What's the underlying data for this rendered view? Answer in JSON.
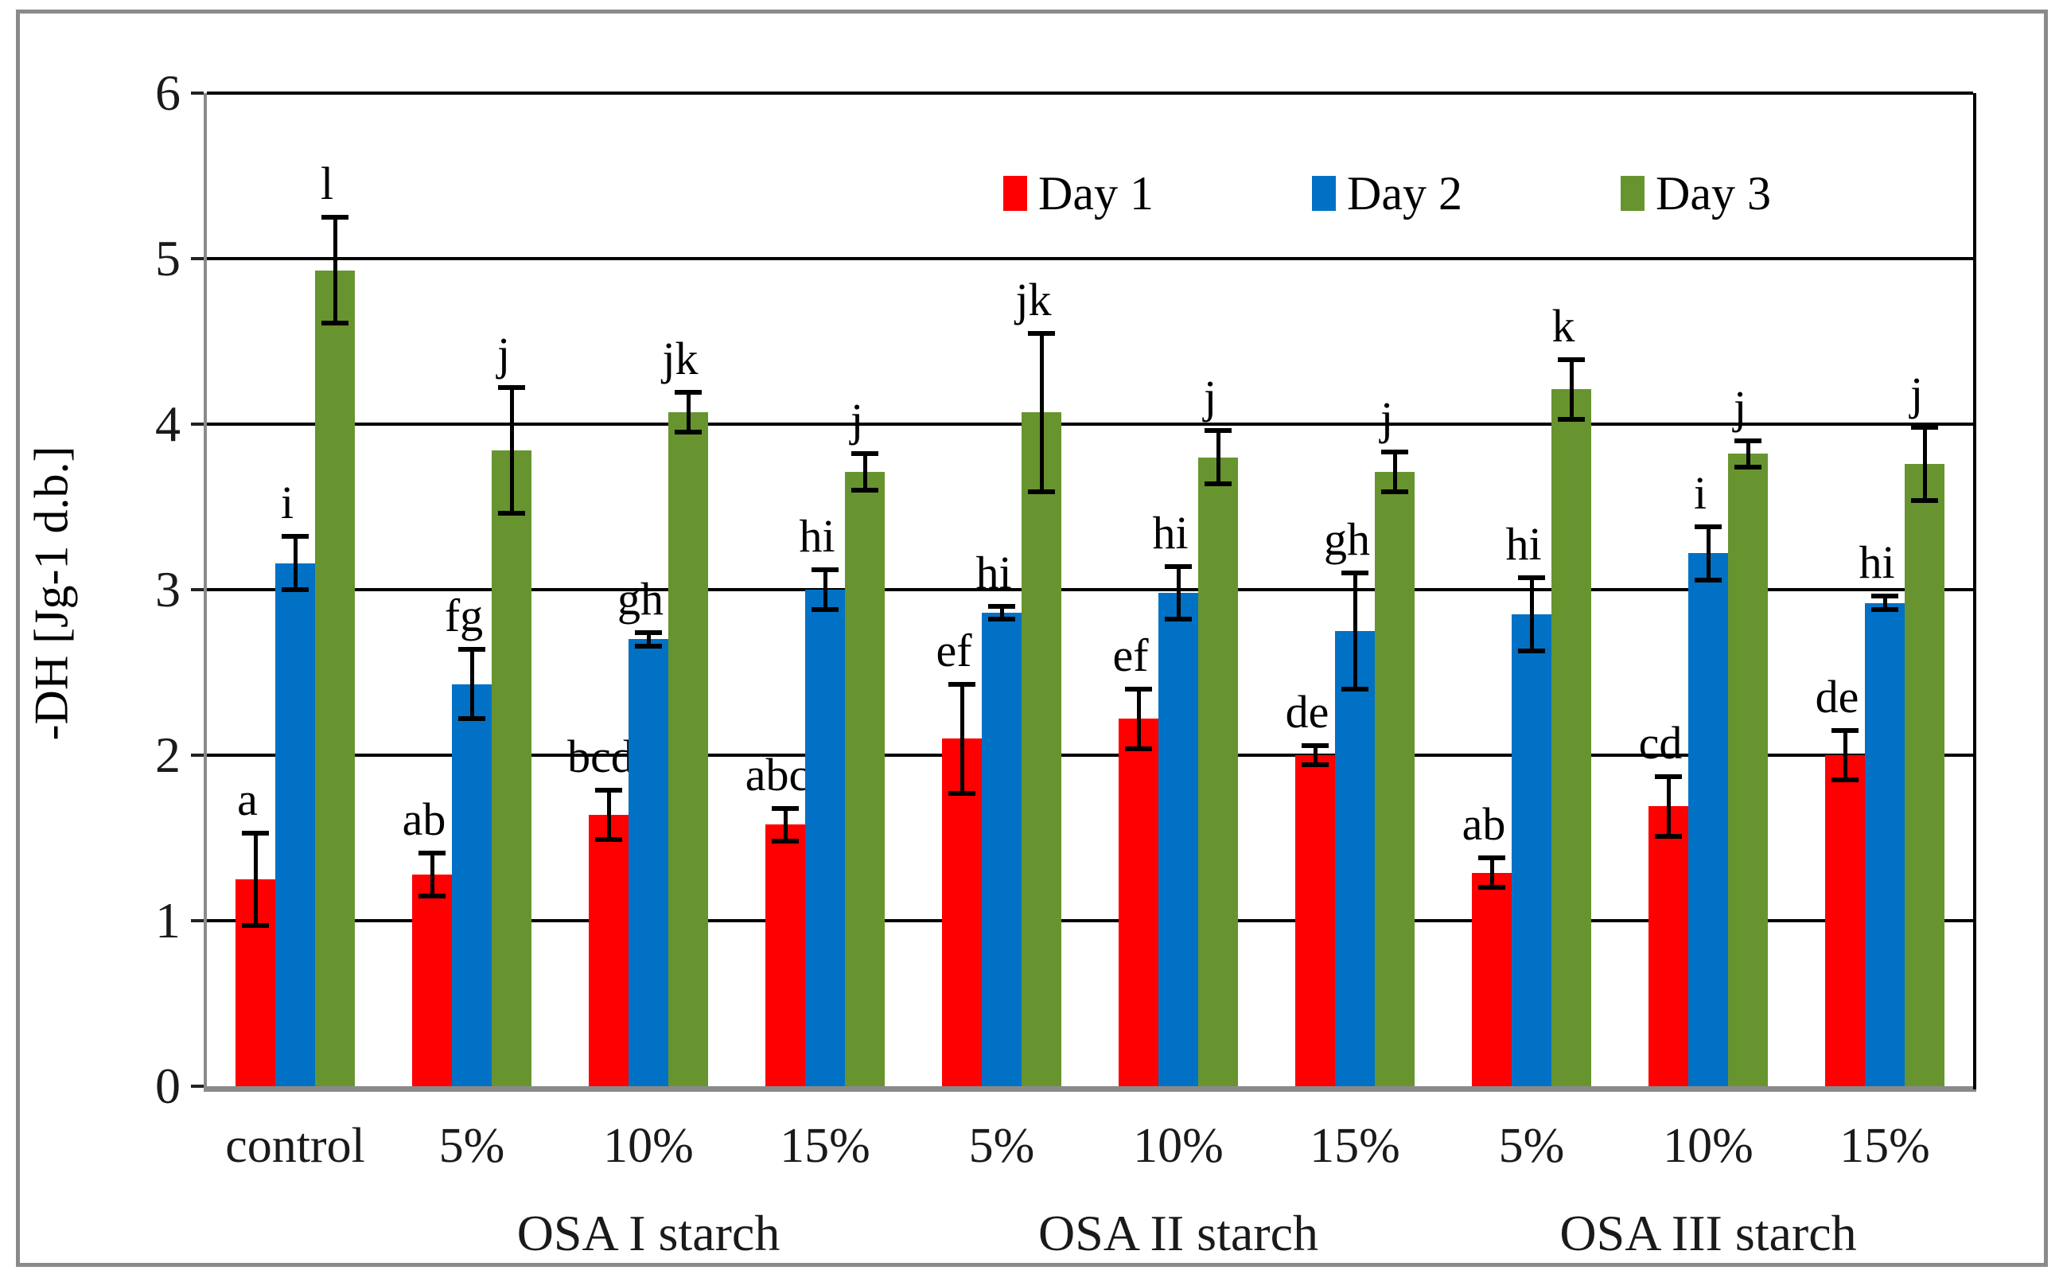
{
  "chart_data": {
    "type": "bar",
    "title": "",
    "ylabel": "-DH [Jg-1 d.b.]",
    "xlabel": "",
    "ylim": [
      0,
      6
    ],
    "ytick_step": 1,
    "ytick_labels": [
      "0",
      "1",
      "2",
      "3",
      "4",
      "5",
      "6"
    ],
    "grid": true,
    "legend_position": "top-inside",
    "categories": [
      "control",
      "5%",
      "10%",
      "15%",
      "5%",
      "10%",
      "15%",
      "5%",
      "10%",
      "15%"
    ],
    "group_labels": [
      {
        "label": "OSA I starch",
        "center_category_index": 2
      },
      {
        "label": "OSA II starch",
        "center_category_index": 5
      },
      {
        "label": "OSA III starch",
        "center_category_index": 8
      }
    ],
    "series": [
      {
        "name": "Day 1",
        "color": "#FE0000",
        "values": [
          1.25,
          1.28,
          1.64,
          1.58,
          2.1,
          2.22,
          2.0,
          1.29,
          1.69,
          2.0
        ],
        "errors": [
          0.28,
          0.13,
          0.15,
          0.1,
          0.33,
          0.18,
          0.06,
          0.09,
          0.18,
          0.15
        ],
        "letters": [
          "a",
          "ab",
          "bcd",
          "abc",
          "ef",
          "ef",
          "de",
          "ab",
          "cd",
          "de"
        ]
      },
      {
        "name": "Day 2",
        "color": "#0171C5",
        "values": [
          3.16,
          2.43,
          2.7,
          3.0,
          2.86,
          2.98,
          2.75,
          2.85,
          3.22,
          2.92
        ],
        "errors": [
          0.16,
          0.21,
          0.04,
          0.12,
          0.04,
          0.16,
          0.35,
          0.22,
          0.16,
          0.04
        ],
        "letters": [
          "i",
          "fg",
          "gh",
          "hi",
          "hi",
          "hi",
          "gh",
          "hi",
          "i",
          "hi"
        ]
      },
      {
        "name": "Day 3",
        "color": "#68942F",
        "values": [
          4.93,
          3.84,
          4.07,
          3.71,
          4.07,
          3.8,
          3.71,
          4.21,
          3.82,
          3.76
        ],
        "errors": [
          0.32,
          0.38,
          0.12,
          0.11,
          0.48,
          0.16,
          0.12,
          0.18,
          0.08,
          0.22
        ],
        "letters": [
          "l",
          "j",
          "jk",
          "j",
          "jk",
          "j",
          "j",
          "k",
          "j",
          "j"
        ]
      }
    ]
  },
  "colors": {
    "grid": "#000000",
    "axis": "#8a8a8a",
    "frame": "#8a8a8a",
    "text": "#000000",
    "background": "#ffffff"
  }
}
